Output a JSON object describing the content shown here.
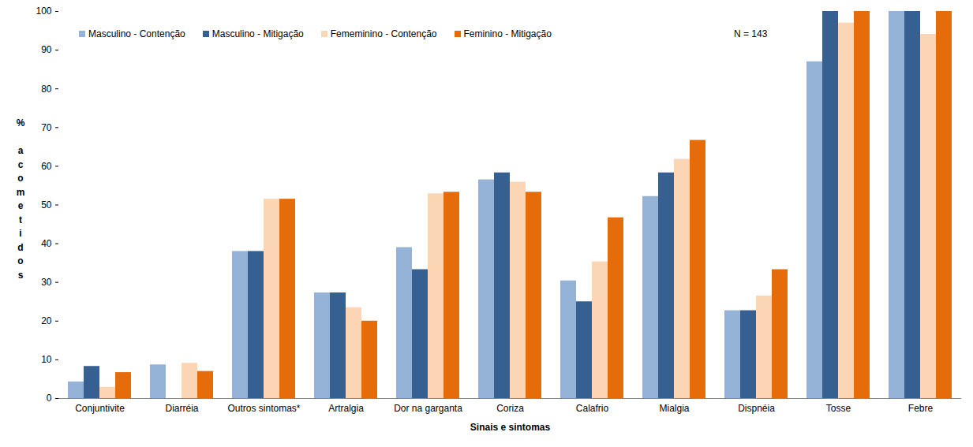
{
  "chart_data": {
    "type": "bar",
    "x_label": "Sinais e sintomas",
    "y_label": "% acometidos",
    "annotation": "N = 143",
    "categories": [
      "Conjuntivite",
      "Diarréia",
      "Outros sintomas*",
      "Artralgia",
      "Dor na garganta",
      "Coriza",
      "Calafrio",
      "Mialgia",
      "Dispnéia",
      "Tosse",
      "Febre"
    ],
    "series": [
      {
        "name": "Masculino - Contenção",
        "color": "#95b3d7",
        "values": [
          4.3,
          8.7,
          38,
          27.3,
          39,
          56.5,
          30.4,
          52.2,
          22.7,
          87,
          100
        ]
      },
      {
        "name": "Masculino - Mitigação",
        "color": "#376092",
        "values": [
          8.3,
          0,
          38,
          27.3,
          33.3,
          58.3,
          25,
          58.3,
          22.7,
          100,
          100
        ]
      },
      {
        "name": "Fememinino - Contenção",
        "color": "#fcd5b4",
        "values": [
          2.9,
          9.1,
          51.5,
          23.5,
          52.9,
          55.9,
          35.3,
          61.8,
          26.5,
          97,
          94.1
        ]
      },
      {
        "name": "Feminino - Mitigação",
        "color": "#e46c0a",
        "values": [
          6.7,
          7,
          51.5,
          20,
          53.3,
          53.3,
          46.7,
          66.7,
          33.3,
          100,
          100
        ]
      }
    ],
    "ylim": [
      0,
      100
    ],
    "yticks": [
      0,
      10,
      20,
      30,
      40,
      50,
      60,
      70,
      80,
      90,
      100
    ],
    "grid": false,
    "legend": "top-left"
  }
}
